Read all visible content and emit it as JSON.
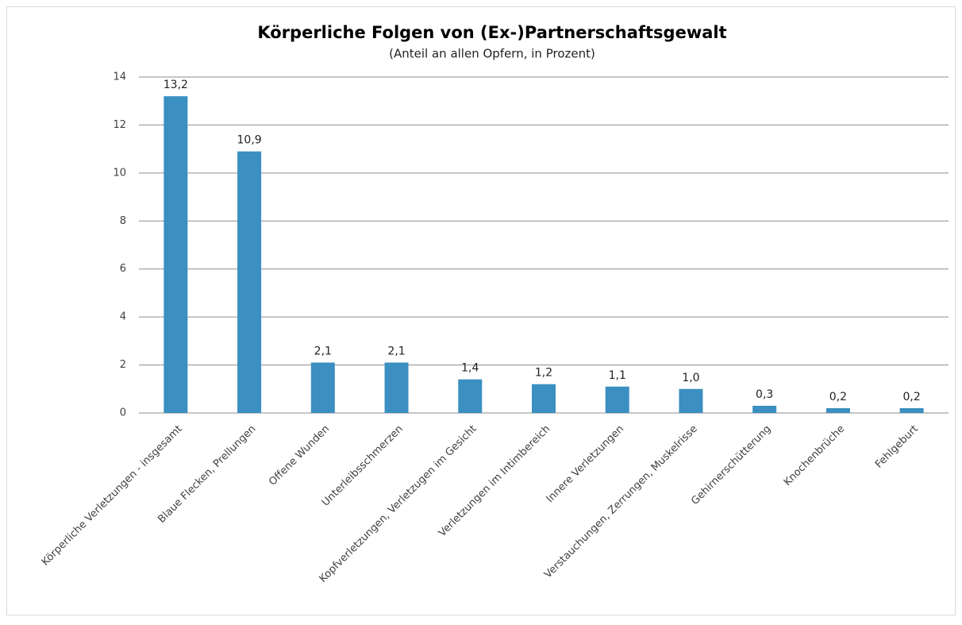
{
  "chart_data": {
    "type": "bar",
    "title": "Körperliche Folgen von (Ex-)Partnerschaftsgewalt",
    "subtitle": "(Anteil an allen Opfern, in Prozent)",
    "categories": [
      "Körperliche Verletzungen - insgesamt",
      "Blaue Flecken, Prellungen",
      "Offene Wunden",
      "Unterleibsschmerzen",
      "Kopfverletzungen, Verletzugen im Gesicht",
      "Verletzungen im Intimbereich",
      "Innere Verletzungen",
      "Verstauchungen, Zerrungen, Muskelrisse",
      "Gehirnerschütterung",
      "Knochenbrüche",
      "Fehlgeburt"
    ],
    "values": [
      13.2,
      10.9,
      2.1,
      2.1,
      1.4,
      1.2,
      1.1,
      1.0,
      0.3,
      0.2,
      0.2
    ],
    "value_labels": [
      "13,2",
      "10,9",
      "2,1",
      "2,1",
      "1,4",
      "1,2",
      "1,1",
      "1,0",
      "0,3",
      "0,2",
      "0,2"
    ],
    "color": "#3b8fc1",
    "ylim": [
      0,
      14
    ],
    "yticks": [
      0,
      2,
      4,
      6,
      8,
      10,
      12,
      14
    ],
    "grid": true
  }
}
